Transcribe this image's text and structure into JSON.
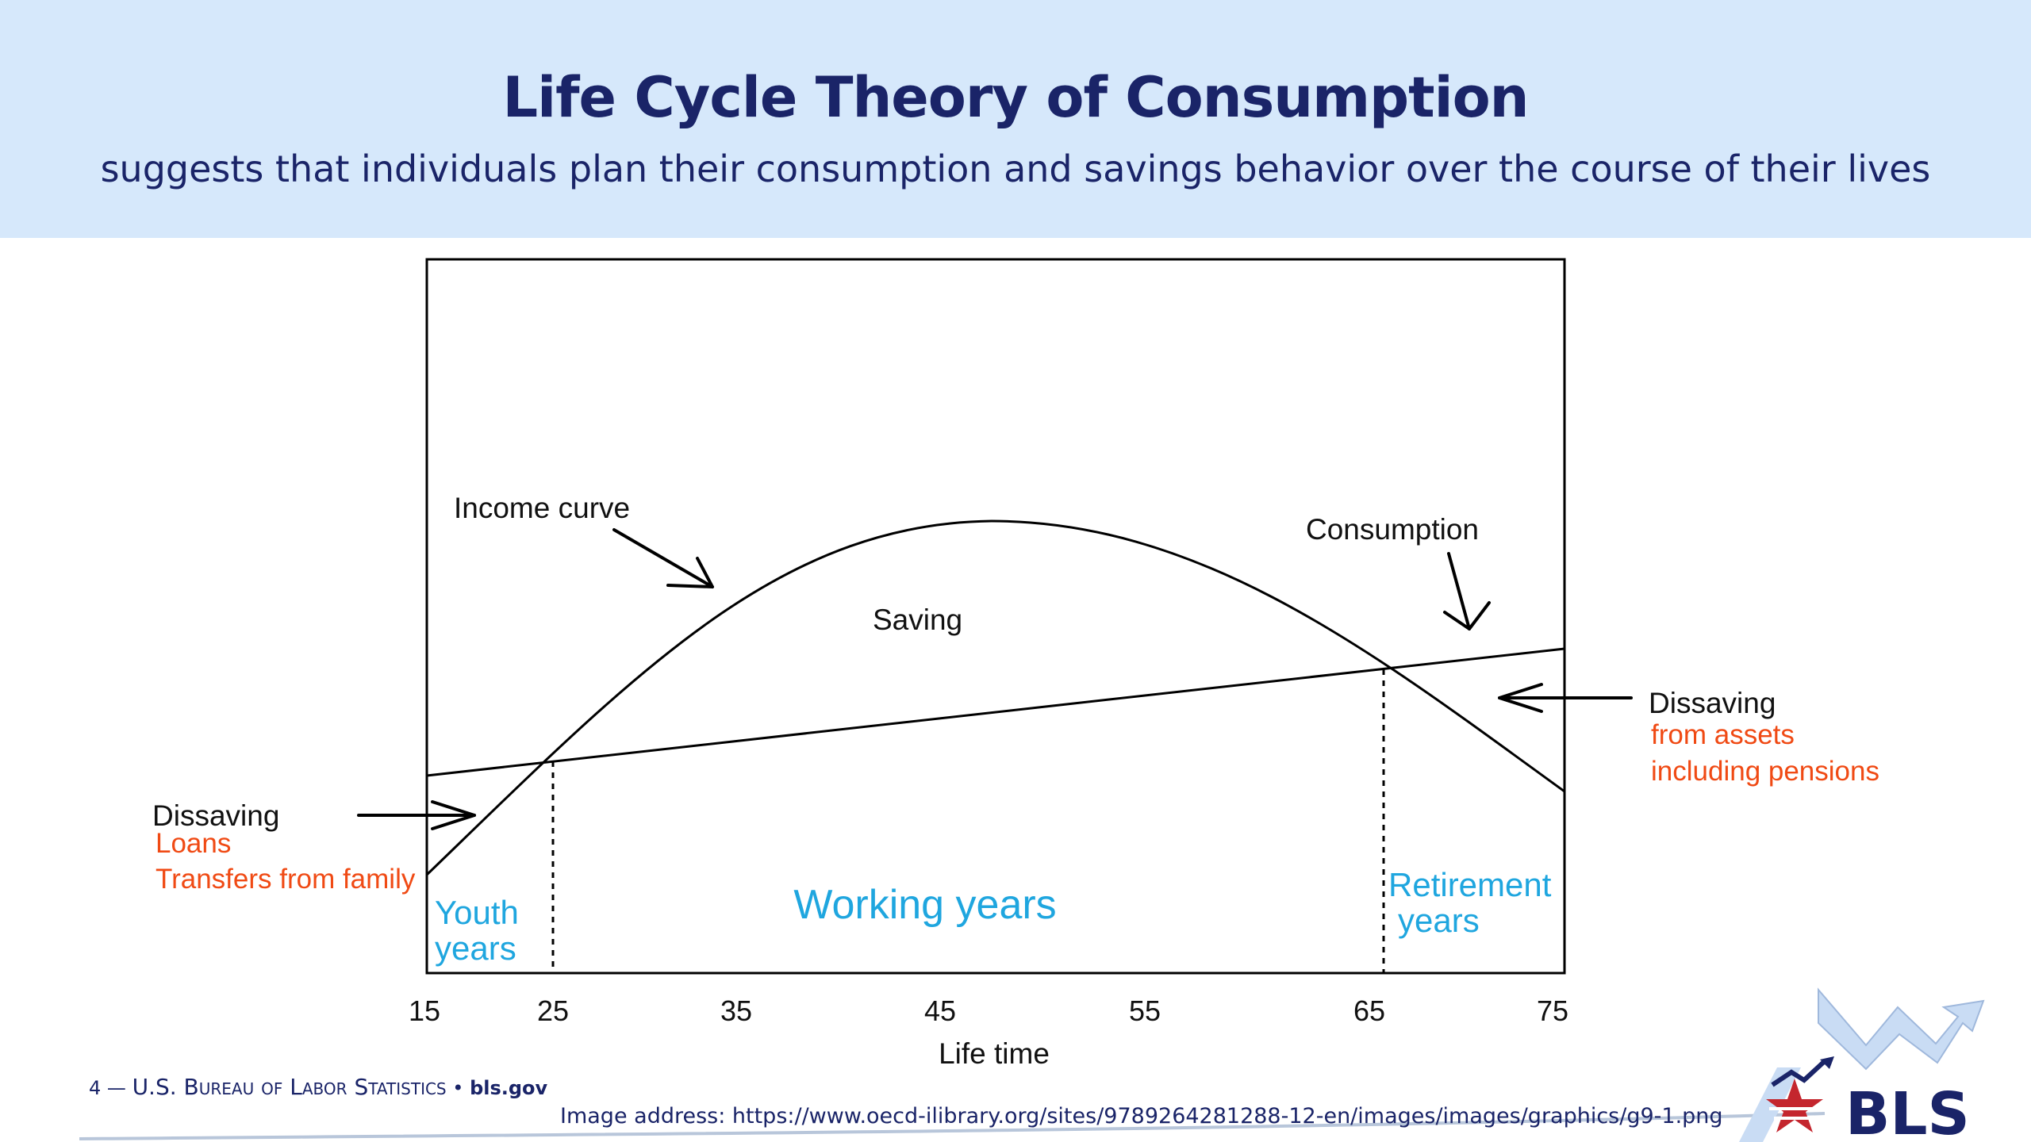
{
  "header": {
    "title": "Life Cycle Theory of Consumption",
    "subtitle": "suggests that individuals plan their consumption and savings behavior over the course of their lives"
  },
  "diagram": {
    "income_curve_label": "Income curve",
    "consumption_label": "Consumption",
    "saving_label": "Saving",
    "dissaving_left_label": "Dissaving",
    "dissaving_left_notes": [
      "Loans",
      "Transfers from family"
    ],
    "dissaving_right_label": "Dissaving",
    "dissaving_right_notes": [
      "from assets",
      "including pensions"
    ],
    "phases": {
      "youth": [
        "Youth",
        "years"
      ],
      "working": "Working years",
      "retirement": [
        "Retirement",
        "years"
      ]
    },
    "x_axis": {
      "ticks": [
        "15",
        "25",
        "35",
        "45",
        "55",
        "65",
        "75"
      ],
      "label": "Life time"
    },
    "colors": {
      "phase_text": "#1fa6df",
      "note_text": "#f04a14",
      "title_text": "#1a2468",
      "header_band": "#d6e8fb"
    }
  },
  "footer": {
    "page_number": "4",
    "agency": "U.S. Bureau of Labor Statistics",
    "site": "bls.gov",
    "image_address": "Image address: https://www.oecd-ilibrary.org/sites/9789264281288-12-en/images/images/graphics/g9-1.png",
    "logo_text": "BLS"
  }
}
